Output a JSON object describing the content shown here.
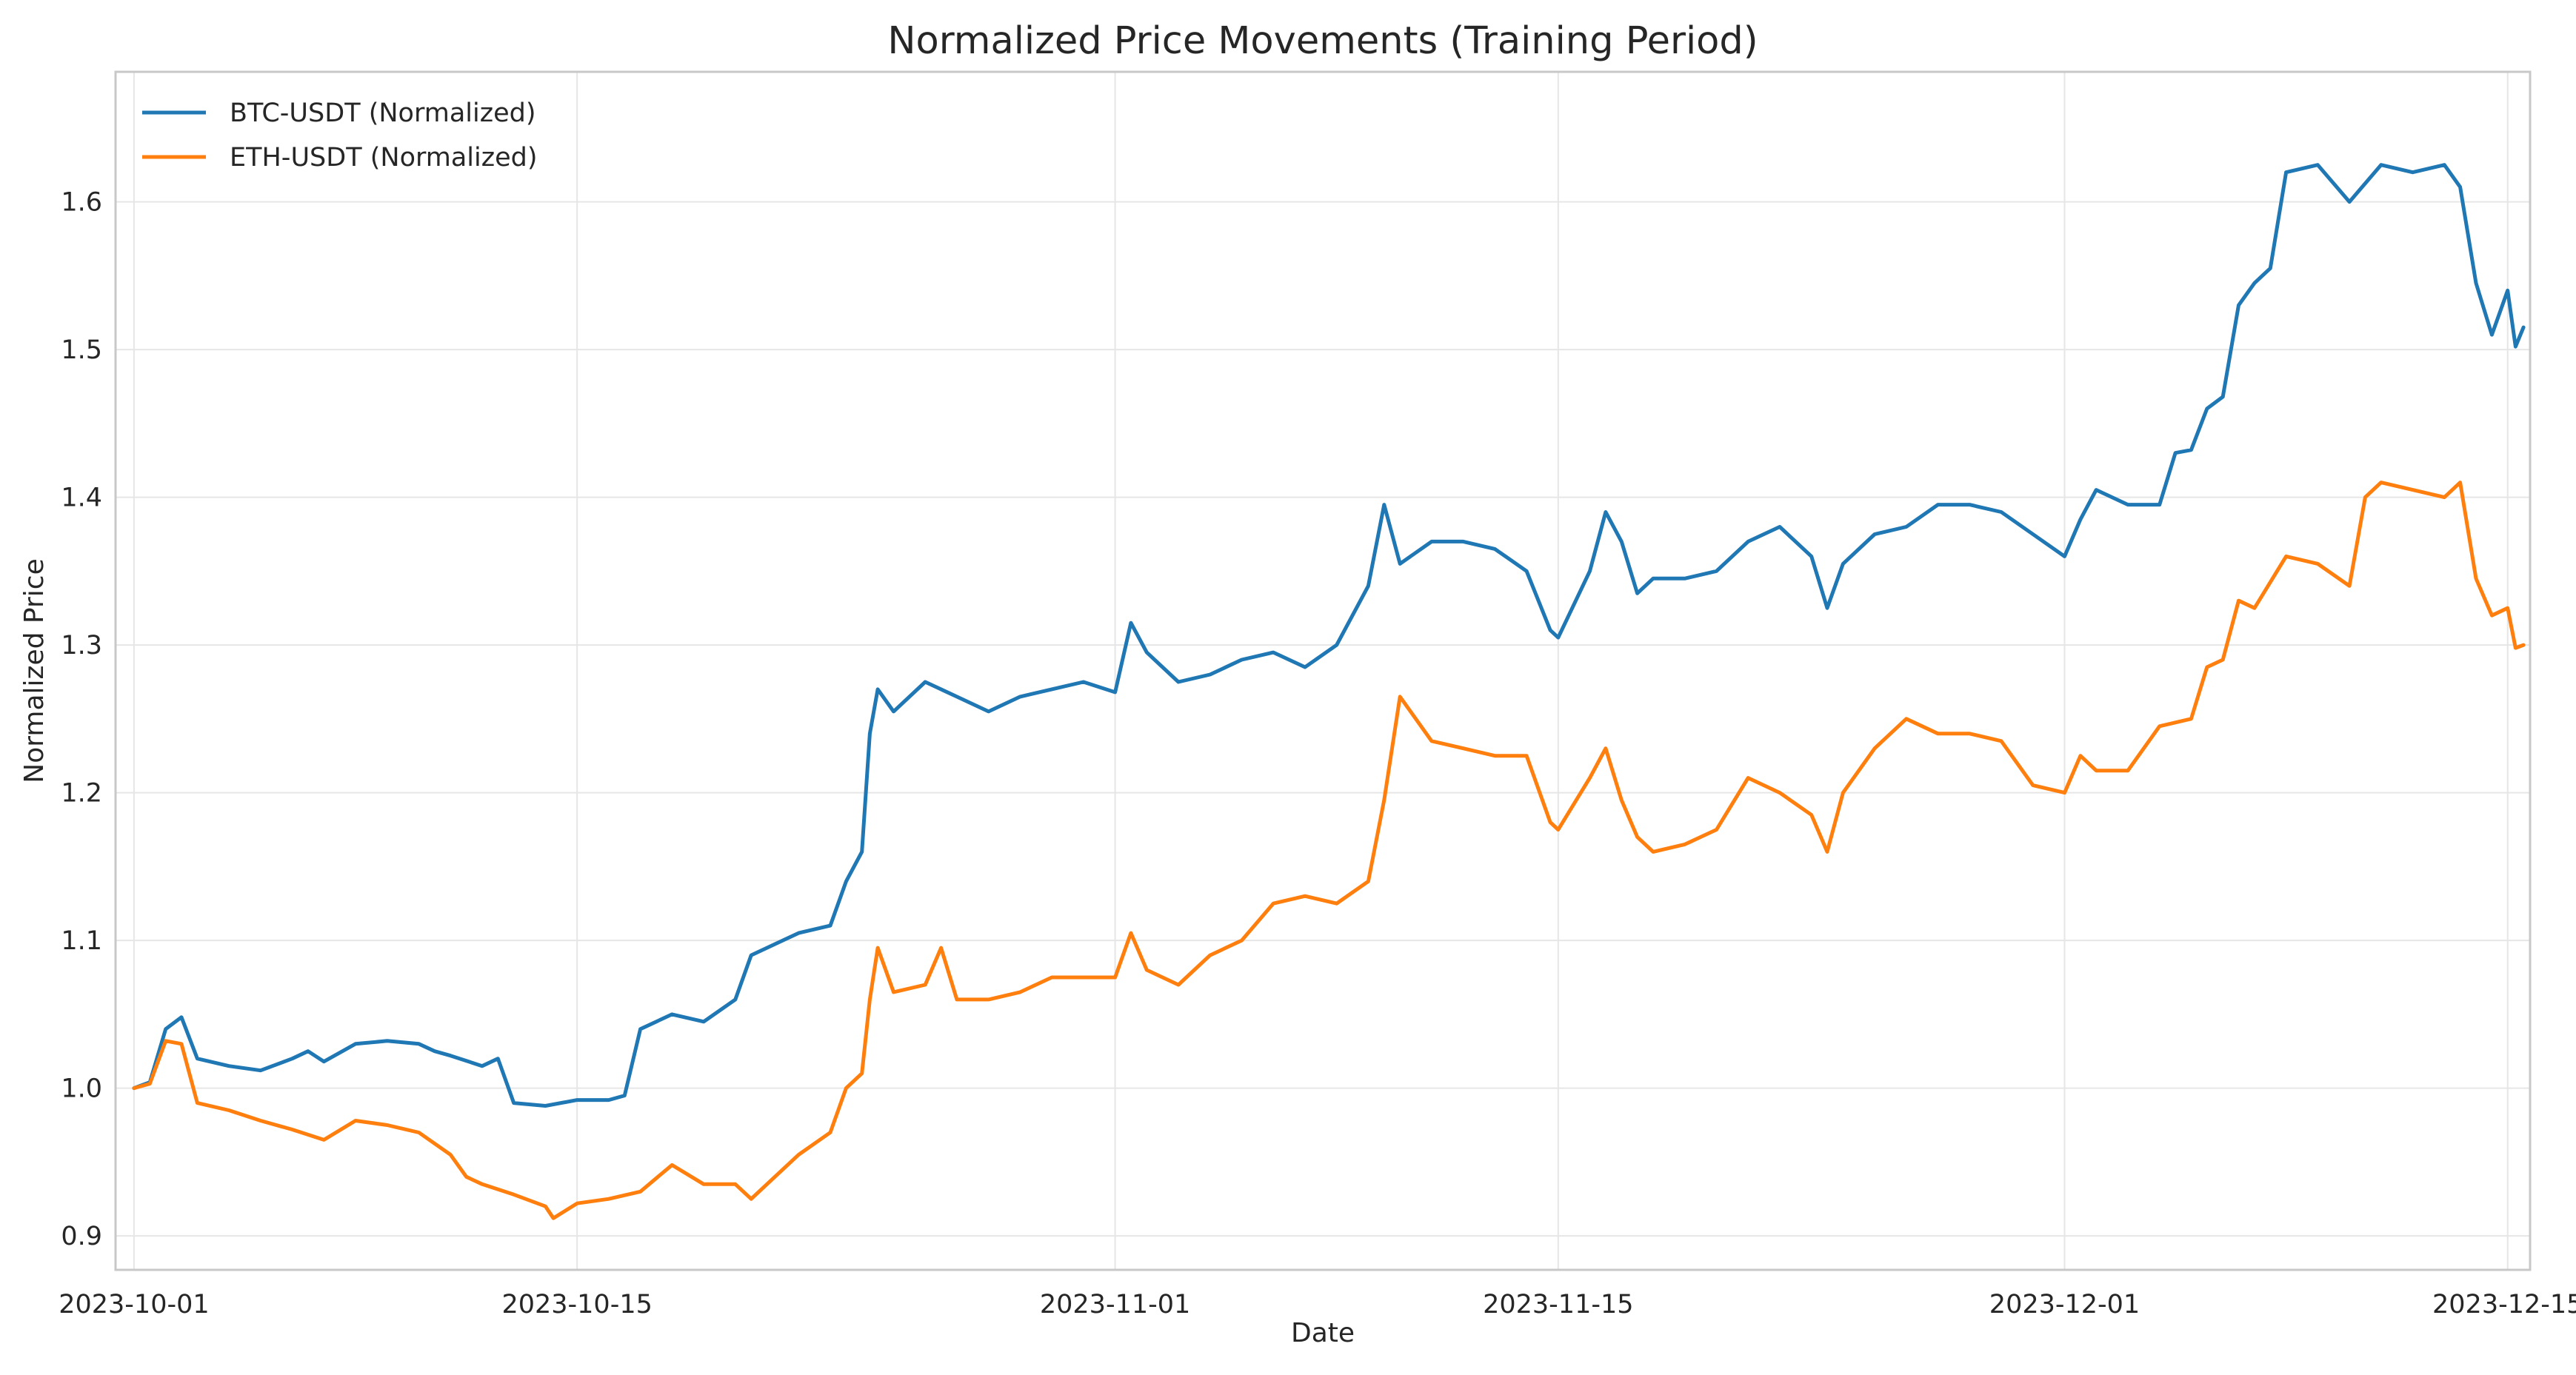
{
  "chart_data": {
    "type": "line",
    "title": "Normalized Price Movements (Training Period)",
    "xlabel": "Date",
    "ylabel": "Normalized Price",
    "x_axis_type": "date",
    "xlim": [
      "2023-09-30T10:00",
      "2023-12-15T17:00"
    ],
    "ylim": [
      0.877,
      1.688
    ],
    "x_ticks": [
      "2023-10-01",
      "2023-10-15",
      "2023-11-01",
      "2023-11-15",
      "2023-12-01",
      "2023-12-15"
    ],
    "y_ticks": [
      0.9,
      1.0,
      1.1,
      1.2,
      1.3,
      1.4,
      1.5,
      1.6
    ],
    "grid": true,
    "legend_position": "top-left",
    "series": [
      {
        "name": "BTC-USDT (Normalized)",
        "color": "#1f77b4",
        "points": [
          [
            "2023-10-01",
            1.0
          ],
          [
            "2023-10-01T12:00",
            1.004
          ],
          [
            "2023-10-02",
            1.04
          ],
          [
            "2023-10-02T12:00",
            1.048
          ],
          [
            "2023-10-03",
            1.02
          ],
          [
            "2023-10-04",
            1.015
          ],
          [
            "2023-10-05",
            1.012
          ],
          [
            "2023-10-06",
            1.02
          ],
          [
            "2023-10-06T12:00",
            1.025
          ],
          [
            "2023-10-07",
            1.018
          ],
          [
            "2023-10-08",
            1.03
          ],
          [
            "2023-10-09",
            1.032
          ],
          [
            "2023-10-10",
            1.03
          ],
          [
            "2023-10-10T12:00",
            1.025
          ],
          [
            "2023-10-11",
            1.022
          ],
          [
            "2023-10-12",
            1.015
          ],
          [
            "2023-10-12T12:00",
            1.02
          ],
          [
            "2023-10-13",
            0.99
          ],
          [
            "2023-10-14",
            0.988
          ],
          [
            "2023-10-15",
            0.992
          ],
          [
            "2023-10-16",
            0.992
          ],
          [
            "2023-10-16T12:00",
            0.995
          ],
          [
            "2023-10-17",
            1.04
          ],
          [
            "2023-10-18",
            1.05
          ],
          [
            "2023-10-19",
            1.045
          ],
          [
            "2023-10-20",
            1.06
          ],
          [
            "2023-10-20T12:00",
            1.09
          ],
          [
            "2023-10-21",
            1.095
          ],
          [
            "2023-10-22",
            1.105
          ],
          [
            "2023-10-23",
            1.11
          ],
          [
            "2023-10-23T12:00",
            1.14
          ],
          [
            "2023-10-24",
            1.16
          ],
          [
            "2023-10-24T06:00",
            1.24
          ],
          [
            "2023-10-24T12:00",
            1.27
          ],
          [
            "2023-10-25",
            1.255
          ],
          [
            "2023-10-26",
            1.275
          ],
          [
            "2023-10-27",
            1.265
          ],
          [
            "2023-10-28",
            1.255
          ],
          [
            "2023-10-29",
            1.265
          ],
          [
            "2023-10-30",
            1.27
          ],
          [
            "2023-10-31",
            1.275
          ],
          [
            "2023-11-01",
            1.268
          ],
          [
            "2023-11-01T12:00",
            1.315
          ],
          [
            "2023-11-02",
            1.295
          ],
          [
            "2023-11-03",
            1.275
          ],
          [
            "2023-11-04",
            1.28
          ],
          [
            "2023-11-05",
            1.29
          ],
          [
            "2023-11-06",
            1.295
          ],
          [
            "2023-11-07",
            1.285
          ],
          [
            "2023-11-08",
            1.3
          ],
          [
            "2023-11-09",
            1.34
          ],
          [
            "2023-11-09T12:00",
            1.395
          ],
          [
            "2023-11-10",
            1.355
          ],
          [
            "2023-11-11",
            1.37
          ],
          [
            "2023-11-12",
            1.37
          ],
          [
            "2023-11-13",
            1.365
          ],
          [
            "2023-11-14",
            1.35
          ],
          [
            "2023-11-14T18:00",
            1.31
          ],
          [
            "2023-11-15",
            1.305
          ],
          [
            "2023-11-16",
            1.35
          ],
          [
            "2023-11-16T12:00",
            1.39
          ],
          [
            "2023-11-17",
            1.37
          ],
          [
            "2023-11-17T12:00",
            1.335
          ],
          [
            "2023-11-18",
            1.345
          ],
          [
            "2023-11-19",
            1.345
          ],
          [
            "2023-11-20",
            1.35
          ],
          [
            "2023-11-21",
            1.37
          ],
          [
            "2023-11-22",
            1.38
          ],
          [
            "2023-11-23",
            1.36
          ],
          [
            "2023-11-23T12:00",
            1.325
          ],
          [
            "2023-11-24",
            1.355
          ],
          [
            "2023-11-25",
            1.375
          ],
          [
            "2023-11-26",
            1.38
          ],
          [
            "2023-11-27",
            1.395
          ],
          [
            "2023-11-28",
            1.395
          ],
          [
            "2023-11-29",
            1.39
          ],
          [
            "2023-11-30",
            1.375
          ],
          [
            "2023-12-01",
            1.36
          ],
          [
            "2023-12-01T12:00",
            1.385
          ],
          [
            "2023-12-02",
            1.405
          ],
          [
            "2023-12-03",
            1.395
          ],
          [
            "2023-12-04",
            1.395
          ],
          [
            "2023-12-04T12:00",
            1.43
          ],
          [
            "2023-12-05",
            1.432
          ],
          [
            "2023-12-05T12:00",
            1.46
          ],
          [
            "2023-12-06",
            1.468
          ],
          [
            "2023-12-06T12:00",
            1.53
          ],
          [
            "2023-12-07",
            1.545
          ],
          [
            "2023-12-07T12:00",
            1.555
          ],
          [
            "2023-12-08",
            1.62
          ],
          [
            "2023-12-09",
            1.625
          ],
          [
            "2023-12-10",
            1.6
          ],
          [
            "2023-12-11",
            1.625
          ],
          [
            "2023-12-12",
            1.62
          ],
          [
            "2023-12-13",
            1.625
          ],
          [
            "2023-12-13T12:00",
            1.61
          ],
          [
            "2023-12-14",
            1.545
          ],
          [
            "2023-12-14T12:00",
            1.51
          ],
          [
            "2023-12-15",
            1.54
          ],
          [
            "2023-12-15T06:00",
            1.502
          ],
          [
            "2023-12-15T12:00",
            1.515
          ]
        ]
      },
      {
        "name": "ETH-USDT (Normalized)",
        "color": "#ff7f0e",
        "points": [
          [
            "2023-10-01",
            1.0
          ],
          [
            "2023-10-01T12:00",
            1.003
          ],
          [
            "2023-10-02",
            1.032
          ],
          [
            "2023-10-02T12:00",
            1.03
          ],
          [
            "2023-10-03",
            0.99
          ],
          [
            "2023-10-04",
            0.985
          ],
          [
            "2023-10-05",
            0.978
          ],
          [
            "2023-10-06",
            0.972
          ],
          [
            "2023-10-07",
            0.965
          ],
          [
            "2023-10-08",
            0.978
          ],
          [
            "2023-10-09",
            0.975
          ],
          [
            "2023-10-10",
            0.97
          ],
          [
            "2023-10-11",
            0.955
          ],
          [
            "2023-10-11T12:00",
            0.94
          ],
          [
            "2023-10-12",
            0.935
          ],
          [
            "2023-10-13",
            0.928
          ],
          [
            "2023-10-14",
            0.92
          ],
          [
            "2023-10-14T06:00",
            0.912
          ],
          [
            "2023-10-15",
            0.922
          ],
          [
            "2023-10-16",
            0.925
          ],
          [
            "2023-10-17",
            0.93
          ],
          [
            "2023-10-18",
            0.948
          ],
          [
            "2023-10-19",
            0.935
          ],
          [
            "2023-10-20",
            0.935
          ],
          [
            "2023-10-20T12:00",
            0.925
          ],
          [
            "2023-10-21",
            0.935
          ],
          [
            "2023-10-22",
            0.955
          ],
          [
            "2023-10-23",
            0.97
          ],
          [
            "2023-10-23T12:00",
            1.0
          ],
          [
            "2023-10-24",
            1.01
          ],
          [
            "2023-10-24T06:00",
            1.06
          ],
          [
            "2023-10-24T12:00",
            1.095
          ],
          [
            "2023-10-25",
            1.065
          ],
          [
            "2023-10-26",
            1.07
          ],
          [
            "2023-10-26T12:00",
            1.095
          ],
          [
            "2023-10-27",
            1.06
          ],
          [
            "2023-10-28",
            1.06
          ],
          [
            "2023-10-29",
            1.065
          ],
          [
            "2023-10-30",
            1.075
          ],
          [
            "2023-10-31",
            1.075
          ],
          [
            "2023-11-01",
            1.075
          ],
          [
            "2023-11-01T12:00",
            1.105
          ],
          [
            "2023-11-02",
            1.08
          ],
          [
            "2023-11-03",
            1.07
          ],
          [
            "2023-11-04",
            1.09
          ],
          [
            "2023-11-05",
            1.1
          ],
          [
            "2023-11-06",
            1.125
          ],
          [
            "2023-11-07",
            1.13
          ],
          [
            "2023-11-08",
            1.125
          ],
          [
            "2023-11-09",
            1.14
          ],
          [
            "2023-11-09T12:00",
            1.195
          ],
          [
            "2023-11-10",
            1.265
          ],
          [
            "2023-11-11",
            1.235
          ],
          [
            "2023-11-12",
            1.23
          ],
          [
            "2023-11-13",
            1.225
          ],
          [
            "2023-11-14",
            1.225
          ],
          [
            "2023-11-14T18:00",
            1.18
          ],
          [
            "2023-11-15",
            1.175
          ],
          [
            "2023-11-16",
            1.21
          ],
          [
            "2023-11-16T12:00",
            1.23
          ],
          [
            "2023-11-17",
            1.195
          ],
          [
            "2023-11-17T12:00",
            1.17
          ],
          [
            "2023-11-18",
            1.16
          ],
          [
            "2023-11-19",
            1.165
          ],
          [
            "2023-11-20",
            1.175
          ],
          [
            "2023-11-21",
            1.21
          ],
          [
            "2023-11-22",
            1.2
          ],
          [
            "2023-11-23",
            1.185
          ],
          [
            "2023-11-23T12:00",
            1.16
          ],
          [
            "2023-11-24",
            1.2
          ],
          [
            "2023-11-25",
            1.23
          ],
          [
            "2023-11-26",
            1.25
          ],
          [
            "2023-11-27",
            1.24
          ],
          [
            "2023-11-28",
            1.24
          ],
          [
            "2023-11-29",
            1.235
          ],
          [
            "2023-11-30",
            1.205
          ],
          [
            "2023-12-01",
            1.2
          ],
          [
            "2023-12-01T12:00",
            1.225
          ],
          [
            "2023-12-02",
            1.215
          ],
          [
            "2023-12-03",
            1.215
          ],
          [
            "2023-12-04",
            1.245
          ],
          [
            "2023-12-05",
            1.25
          ],
          [
            "2023-12-05T12:00",
            1.285
          ],
          [
            "2023-12-06",
            1.29
          ],
          [
            "2023-12-06T12:00",
            1.33
          ],
          [
            "2023-12-07",
            1.325
          ],
          [
            "2023-12-08",
            1.36
          ],
          [
            "2023-12-09",
            1.355
          ],
          [
            "2023-12-10",
            1.34
          ],
          [
            "2023-12-10T12:00",
            1.4
          ],
          [
            "2023-12-11",
            1.41
          ],
          [
            "2023-12-12",
            1.405
          ],
          [
            "2023-12-13",
            1.4
          ],
          [
            "2023-12-13T12:00",
            1.41
          ],
          [
            "2023-12-14",
            1.345
          ],
          [
            "2023-12-14T12:00",
            1.32
          ],
          [
            "2023-12-15",
            1.325
          ],
          [
            "2023-12-15T06:00",
            1.298
          ],
          [
            "2023-12-15T12:00",
            1.3
          ]
        ]
      }
    ]
  }
}
